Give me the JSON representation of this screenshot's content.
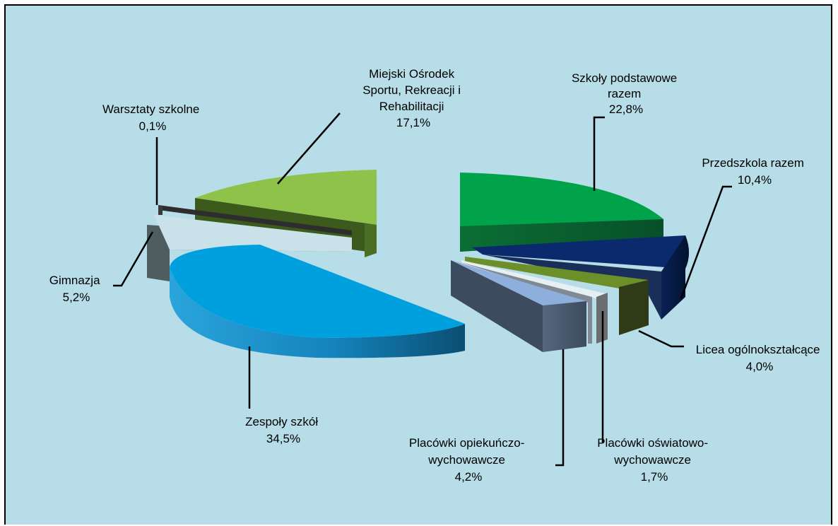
{
  "chart_data": {
    "type": "pie",
    "style": "3d-exploded",
    "background": "#b7dde8",
    "slices": [
      {
        "label": "Szkoły podstawowe razem",
        "value": 22.8,
        "value_label": "22,8%",
        "color": "#00a24a"
      },
      {
        "label": "Przedszkola razem",
        "value": 10.4,
        "value_label": "10,4%",
        "color": "#0b2a6e"
      },
      {
        "label": "Licea ogólnokształcące",
        "value": 4.0,
        "value_label": "4,0%",
        "color": "#6d8f2a"
      },
      {
        "label": "Placówki oświatowo-wychowawcze",
        "value": 1.7,
        "value_label": "1,7%",
        "color": "#e6f0f2"
      },
      {
        "label": "Placówki opiekuńczo-wychowawcze",
        "value": 4.2,
        "value_label": "4,2%",
        "color": "#8eaedb"
      },
      {
        "label": "Zespoły szkół",
        "value": 34.5,
        "value_label": "34,5%",
        "color": "#00a0df"
      },
      {
        "label": "Gimnazja",
        "value": 5.2,
        "value_label": "5,2%",
        "color": "#c9e2ea"
      },
      {
        "label": "Warsztaty szkolne",
        "value": 0.1,
        "value_label": "0,1%",
        "color": "#3a3a3a"
      },
      {
        "label": "Miejski Ośrodek Sportu, Rekreacji i Rehabilitacji",
        "value": 17.1,
        "value_label": "17,1%",
        "color": "#8fc24a"
      }
    ]
  },
  "labels": {
    "szkoly": [
      "Szkoły podstawowe",
      "razem",
      "22,8%"
    ],
    "przedszkola": [
      "Przedszkola razem",
      "10,4%"
    ],
    "licea": [
      "Licea ogólnokształcące",
      "4,0%"
    ],
    "oswiatowo": [
      "Placówki oświatowo-",
      "wychowawcze",
      "1,7%"
    ],
    "opiekuncze": [
      "Placówki opiekuńczo-",
      "wychowawcze",
      "4,2%"
    ],
    "zespoly": [
      "Zespoły szkół",
      "34,5%"
    ],
    "gimnazja": [
      "Gimnazja",
      "5,2%"
    ],
    "warsztaty": [
      "Warsztaty szkolne",
      "0,1%"
    ],
    "mosir": [
      "Miejski Ośrodek",
      "Sportu, Rekreacji i",
      "Rehabilitacji",
      "17,1%"
    ]
  }
}
